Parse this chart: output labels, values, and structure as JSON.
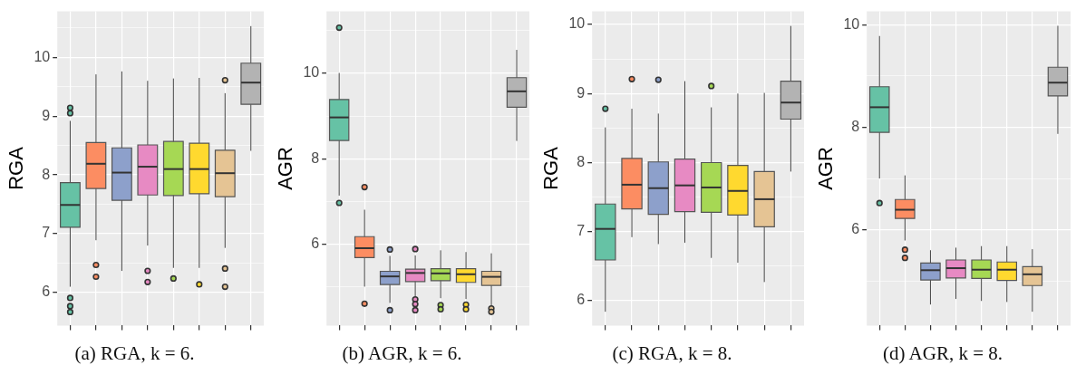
{
  "chart_data": [
    {
      "type": "box",
      "title": "(a) RGA, k = 6.",
      "ylabel": "RGA",
      "categories": [
        null,
        null,
        null,
        null,
        null,
        null,
        null,
        null
      ],
      "colors": [
        "#66c2a5",
        "#fc8d62",
        "#8da0cb",
        "#e78ac3",
        "#a6d854",
        "#ffd92f",
        "#e5c494",
        "#b3b3b3"
      ],
      "boxes": [
        {
          "low": 6.1,
          "q1": 7.11,
          "median": 7.49,
          "q3": 7.87,
          "high": 8.92,
          "outliers": [
            9.14,
            9.05,
            5.91,
            5.77,
            5.67
          ]
        },
        {
          "low": 6.89,
          "q1": 7.77,
          "median": 8.19,
          "q3": 8.55,
          "high": 9.71,
          "outliers": [
            6.47,
            6.27
          ]
        },
        {
          "low": 6.37,
          "q1": 7.57,
          "median": 8.04,
          "q3": 8.46,
          "high": 9.76
        },
        {
          "low": 6.8,
          "q1": 7.66,
          "median": 8.14,
          "q3": 8.51,
          "high": 9.6,
          "outliers": [
            6.37,
            6.18
          ]
        },
        {
          "low": 6.42,
          "q1": 7.65,
          "median": 8.1,
          "q3": 8.57,
          "high": 9.64,
          "outliers": [
            6.24
          ]
        },
        {
          "low": 6.42,
          "q1": 7.68,
          "median": 8.1,
          "q3": 8.54,
          "high": 9.65,
          "outliers": [
            6.14
          ]
        },
        {
          "low": 6.76,
          "q1": 7.63,
          "median": 8.03,
          "q3": 8.42,
          "high": 9.39,
          "outliers": [
            9.61,
            6.41,
            6.1
          ]
        },
        {
          "low": 8.41,
          "q1": 9.2,
          "median": 9.57,
          "q3": 9.9,
          "high": 10.53
        }
      ],
      "ylim": [
        5.44,
        10.78
      ],
      "yticks": [
        6,
        {
          "value": 6.5,
          "label": null
        },
        7,
        {
          "value": 7.5,
          "label": null
        },
        8,
        {
          "value": 8.5,
          "label": null
        },
        9,
        {
          "value": 9.5,
          "label": null
        },
        10,
        {
          "value": 10.5,
          "label": null
        }
      ],
      "grid": true
    },
    {
      "type": "box",
      "title": "(b) AGR, k = 6.",
      "ylabel": "AGR",
      "categories": [
        null,
        null,
        null,
        null,
        null,
        null,
        null,
        null
      ],
      "colors": [
        "#66c2a5",
        "#fc8d62",
        "#8da0cb",
        "#e78ac3",
        "#a6d854",
        "#ffd92f",
        "#e5c494",
        "#b3b3b3"
      ],
      "boxes": [
        {
          "low": 7.14,
          "q1": 8.43,
          "median": 8.97,
          "q3": 9.39,
          "high": 10.01,
          "outliers": [
            11.07,
            6.97
          ]
        },
        {
          "low": 5.01,
          "q1": 5.69,
          "median": 5.91,
          "q3": 6.18,
          "high": 6.81,
          "outliers": [
            7.34,
            4.61
          ]
        },
        {
          "low": 4.63,
          "q1": 5.06,
          "median": 5.25,
          "q3": 5.37,
          "high": 5.73,
          "outliers": [
            5.88,
            4.46
          ]
        },
        {
          "low": 4.77,
          "q1": 5.13,
          "median": 5.33,
          "q3": 5.42,
          "high": 5.74,
          "outliers": [
            5.89,
            4.71,
            4.6,
            4.46
          ]
        },
        {
          "low": 4.74,
          "q1": 5.15,
          "median": 5.32,
          "q3": 5.43,
          "high": 5.86,
          "outliers": [
            4.58,
            4.48
          ]
        },
        {
          "low": 4.72,
          "q1": 5.11,
          "median": 5.3,
          "q3": 5.43,
          "high": 5.82,
          "outliers": [
            4.59,
            4.48
          ]
        },
        {
          "low": 4.55,
          "q1": 5.04,
          "median": 5.24,
          "q3": 5.37,
          "high": 5.79,
          "outliers": [
            4.5,
            4.42
          ]
        },
        {
          "low": 8.42,
          "q1": 9.21,
          "median": 9.58,
          "q3": 9.9,
          "high": 10.55
        }
      ],
      "ylim": [
        4.1,
        11.45
      ],
      "yticks": [
        {
          "value": 5,
          "label": null
        },
        6,
        {
          "value": 7,
          "label": null
        },
        8,
        {
          "value": 9,
          "label": null
        },
        10,
        {
          "value": 11,
          "label": null
        }
      ],
      "grid": true
    },
    {
      "type": "box",
      "title": "(c) RGA, k = 8.",
      "ylabel": "RGA",
      "categories": [
        null,
        null,
        null,
        null,
        null,
        null,
        null,
        null
      ],
      "colors": [
        "#66c2a5",
        "#fc8d62",
        "#8da0cb",
        "#e78ac3",
        "#a6d854",
        "#ffd92f",
        "#e5c494",
        "#b3b3b3"
      ],
      "boxes": [
        {
          "low": 5.84,
          "q1": 6.59,
          "median": 7.04,
          "q3": 7.4,
          "high": 8.51,
          "outliers": [
            8.78
          ]
        },
        {
          "low": 6.92,
          "q1": 7.33,
          "median": 7.68,
          "q3": 8.06,
          "high": 8.78,
          "outliers": [
            9.21
          ]
        },
        {
          "low": 6.82,
          "q1": 7.25,
          "median": 7.63,
          "q3": 8.01,
          "high": 8.71,
          "outliers": [
            9.2
          ]
        },
        {
          "low": 6.84,
          "q1": 7.29,
          "median": 7.67,
          "q3": 8.05,
          "high": 9.18
        },
        {
          "low": 6.62,
          "q1": 7.28,
          "median": 7.64,
          "q3": 8.0,
          "high": 8.8,
          "outliers": [
            9.11
          ]
        },
        {
          "low": 6.55,
          "q1": 7.24,
          "median": 7.59,
          "q3": 7.96,
          "high": 9.0
        },
        {
          "low": 6.27,
          "q1": 7.07,
          "median": 7.47,
          "q3": 7.87,
          "high": 9.01
        },
        {
          "low": 7.87,
          "q1": 8.63,
          "median": 8.87,
          "q3": 9.18,
          "high": 9.98
        }
      ],
      "ylim": [
        5.64,
        10.19
      ],
      "yticks": [
        6,
        {
          "value": 6.5,
          "label": null
        },
        7,
        {
          "value": 7.5,
          "label": null
        },
        8,
        {
          "value": 8.5,
          "label": null
        },
        9,
        {
          "value": 9.5,
          "label": null
        },
        10
      ],
      "grid": true
    },
    {
      "type": "box",
      "title": "(d) AGR, k = 8.",
      "ylabel": "AGR",
      "categories": [
        null,
        null,
        null,
        null,
        null,
        null,
        null,
        null
      ],
      "colors": [
        "#66c2a5",
        "#fc8d62",
        "#8da0cb",
        "#e78ac3",
        "#a6d854",
        "#ffd92f",
        "#e5c494",
        "#b3b3b3"
      ],
      "boxes": [
        {
          "low": 7.0,
          "q1": 7.9,
          "median": 8.39,
          "q3": 8.79,
          "high": 9.78,
          "outliers": [
            6.52
          ]
        },
        {
          "low": 5.79,
          "q1": 6.22,
          "median": 6.39,
          "q3": 6.59,
          "high": 7.06,
          "outliers": [
            5.61,
            5.45
          ]
        },
        {
          "low": 4.54,
          "q1": 5.02,
          "median": 5.21,
          "q3": 5.35,
          "high": 5.6
        },
        {
          "low": 4.65,
          "q1": 5.06,
          "median": 5.25,
          "q3": 5.41,
          "high": 5.65
        },
        {
          "low": 4.61,
          "q1": 5.05,
          "median": 5.22,
          "q3": 5.41,
          "high": 5.68
        },
        {
          "low": 4.59,
          "q1": 5.01,
          "median": 5.22,
          "q3": 5.37,
          "high": 5.68
        },
        {
          "low": 4.4,
          "q1": 4.91,
          "median": 5.13,
          "q3": 5.28,
          "high": 5.62
        },
        {
          "low": 7.87,
          "q1": 8.61,
          "median": 8.87,
          "q3": 9.17,
          "high": 9.98
        }
      ],
      "ylim": [
        4.13,
        10.26
      ],
      "yticks": [
        {
          "value": 5,
          "label": null
        },
        6,
        {
          "value": 7,
          "label": null
        },
        8,
        {
          "value": 9,
          "label": null
        },
        10
      ],
      "grid": true
    }
  ]
}
